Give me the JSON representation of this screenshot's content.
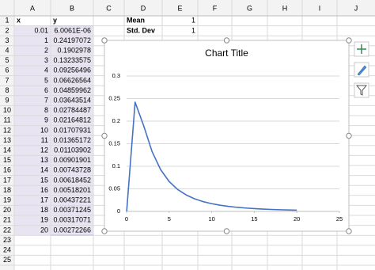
{
  "column_letters": [
    "A",
    "B",
    "C",
    "D",
    "E",
    "F",
    "G",
    "H",
    "I",
    "J"
  ],
  "row_numbers": [
    1,
    2,
    3,
    4,
    5,
    6,
    7,
    8,
    9,
    10,
    11,
    12,
    13,
    14,
    15,
    16,
    17,
    18,
    19,
    20,
    21,
    22,
    23,
    24,
    25
  ],
  "table": {
    "header": [
      "x",
      "y"
    ],
    "rows": [
      [
        "0.01",
        "6.0061E-06"
      ],
      [
        "1",
        "0.24197072"
      ],
      [
        "2",
        "0.1902978"
      ],
      [
        "3",
        "0.13233575"
      ],
      [
        "4",
        "0.09256496"
      ],
      [
        "5",
        "0.06626564"
      ],
      [
        "6",
        "0.04859962"
      ],
      [
        "7",
        "0.03643514"
      ],
      [
        "8",
        "0.02784487"
      ],
      [
        "9",
        "0.02164812"
      ],
      [
        "10",
        "0.01707931"
      ],
      [
        "11",
        "0.01365172"
      ],
      [
        "12",
        "0.01103902"
      ],
      [
        "13",
        "0.00901901"
      ],
      [
        "14",
        "0.00743728"
      ],
      [
        "15",
        "0.00618452"
      ],
      [
        "16",
        "0.00518201"
      ],
      [
        "17",
        "0.00437221"
      ],
      [
        "18",
        "0.00371245"
      ],
      [
        "19",
        "0.00317071"
      ],
      [
        "20",
        "0.00272266"
      ]
    ]
  },
  "params": [
    [
      "Mean",
      "1"
    ],
    [
      "Std. Dev",
      "1"
    ]
  ],
  "chart_data": {
    "type": "line",
    "title": "Chart Title",
    "color": "#4472c4",
    "x": [
      0.01,
      1,
      2,
      3,
      4,
      5,
      6,
      7,
      8,
      9,
      10,
      11,
      12,
      13,
      14,
      15,
      16,
      17,
      18,
      19,
      20
    ],
    "values": [
      6.0061e-06,
      0.24197072,
      0.1902978,
      0.13233575,
      0.09256496,
      0.06626564,
      0.04859962,
      0.03643514,
      0.02784487,
      0.02164812,
      0.01707931,
      0.01365172,
      0.01103902,
      0.00901901,
      0.00743728,
      0.00618452,
      0.00518201,
      0.00437221,
      0.00371245,
      0.00317071,
      0.00272266
    ],
    "xlim": [
      0,
      25
    ],
    "xticks": [
      0,
      5,
      10,
      15,
      20,
      25
    ],
    "ylim": [
      0,
      0.3
    ],
    "yticks": [
      0,
      0.05,
      0.1,
      0.15,
      0.2,
      0.25,
      0.3
    ],
    "grid": true
  }
}
